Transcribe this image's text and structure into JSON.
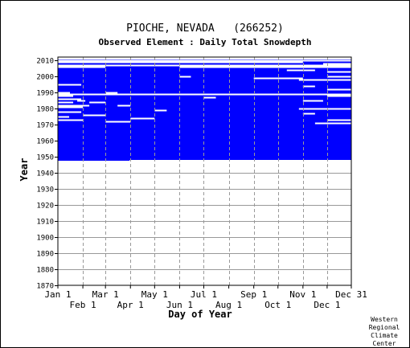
{
  "colors": {
    "fill": "#0000ff",
    "gap": "#ffffff",
    "grid": "#999999",
    "axis": "#000000"
  },
  "credit_lines": [
    "Western",
    "Regional",
    "Climate",
    "Center"
  ],
  "chart_data": {
    "type": "heatmap",
    "title": "PIOCHE, NEVADA   (266252)",
    "subtitle": "Observed Element : Daily Total Snowdepth",
    "xlabel": "Day of Year",
    "ylabel": "Year",
    "xlim": [
      1,
      365
    ],
    "ylim": [
      1870,
      2012
    ],
    "y_ticks": [
      1870,
      1880,
      1890,
      1900,
      1910,
      1920,
      1930,
      1940,
      1950,
      1960,
      1970,
      1980,
      1990,
      2000,
      2010
    ],
    "x_ticks_top_row": [
      {
        "label": "Jan 1",
        "day": 1
      },
      {
        "label": "Mar 1",
        "day": 60
      },
      {
        "label": "May 1",
        "day": 121
      },
      {
        "label": "Jul 1",
        "day": 182
      },
      {
        "label": "Sep 1",
        "day": 244
      },
      {
        "label": "Nov 1",
        "day": 305
      },
      {
        "label": "Dec 31",
        "day": 365
      }
    ],
    "x_ticks_bottom_row": [
      {
        "label": "Feb 1",
        "day": 32
      },
      {
        "label": "Apr 1",
        "day": 91
      },
      {
        "label": "Jun 1",
        "day": 152
      },
      {
        "label": "Aug 1",
        "day": 213
      },
      {
        "label": "Oct 1",
        "day": 274
      },
      {
        "label": "Dec 1",
        "day": 335
      }
    ],
    "grid": true,
    "observed_block": {
      "year_start": 1948,
      "year_end": 2010,
      "day_start": 1,
      "day_end": 365
    },
    "early_start_segment": {
      "year_start": 1948,
      "year_end": 1949,
      "day_start": 1,
      "day_end": 90
    },
    "missing_segments": [
      {
        "year": 2010,
        "day_start": 1,
        "day_end": 365
      },
      {
        "year": 2009,
        "day_start": 1,
        "day_end": 305
      },
      {
        "year": 2008,
        "day_start": 330,
        "day_end": 365
      },
      {
        "year": 2007,
        "day_start": 1,
        "day_end": 365
      },
      {
        "year": 2006,
        "day_start": 1,
        "day_end": 60
      },
      {
        "year": 2006,
        "day_start": 152,
        "day_end": 365
      },
      {
        "year": 2004,
        "day_start": 285,
        "day_end": 320
      },
      {
        "year": 2003,
        "day_start": 335,
        "day_end": 365
      },
      {
        "year": 2000,
        "day_start": 152,
        "day_end": 166
      },
      {
        "year": 2000,
        "day_start": 335,
        "day_end": 365
      },
      {
        "year": 1999,
        "day_start": 244,
        "day_end": 305
      },
      {
        "year": 1998,
        "day_start": 300,
        "day_end": 365
      },
      {
        "year": 1995,
        "day_start": 1,
        "day_end": 30
      },
      {
        "year": 1994,
        "day_start": 305,
        "day_end": 320
      },
      {
        "year": 1992,
        "day_start": 335,
        "day_end": 365
      },
      {
        "year": 1990,
        "day_start": 1,
        "day_end": 16
      },
      {
        "year": 1990,
        "day_start": 60,
        "day_end": 75
      },
      {
        "year": 1989,
        "day_start": 1,
        "day_end": 365
      },
      {
        "year": 1988,
        "day_start": 1,
        "day_end": 20
      },
      {
        "year": 1988,
        "day_start": 335,
        "day_end": 365
      },
      {
        "year": 1987,
        "day_start": 182,
        "day_end": 197
      },
      {
        "year": 1986,
        "day_start": 1,
        "day_end": 30
      },
      {
        "year": 1985,
        "day_start": 25,
        "day_end": 35
      },
      {
        "year": 1985,
        "day_start": 305,
        "day_end": 330
      },
      {
        "year": 1984,
        "day_start": 1,
        "day_end": 20
      },
      {
        "year": 1984,
        "day_start": 40,
        "day_end": 60
      },
      {
        "year": 1982,
        "day_start": 1,
        "day_end": 40
      },
      {
        "year": 1982,
        "day_start": 75,
        "day_end": 91
      },
      {
        "year": 1981,
        "day_start": 1,
        "day_end": 32
      },
      {
        "year": 1980,
        "day_start": 300,
        "day_end": 365
      },
      {
        "year": 1979,
        "day_start": 121,
        "day_end": 136
      },
      {
        "year": 1978,
        "day_start": 1,
        "day_end": 30
      },
      {
        "year": 1977,
        "day_start": 305,
        "day_end": 320
      },
      {
        "year": 1976,
        "day_start": 32,
        "day_end": 60
      },
      {
        "year": 1975,
        "day_start": 1,
        "day_end": 15
      },
      {
        "year": 1974,
        "day_start": 91,
        "day_end": 121
      },
      {
        "year": 1973,
        "day_start": 1,
        "day_end": 32
      },
      {
        "year": 1973,
        "day_start": 335,
        "day_end": 365
      },
      {
        "year": 1972,
        "day_start": 60,
        "day_end": 91
      },
      {
        "year": 1971,
        "day_start": 320,
        "day_end": 365
      }
    ]
  }
}
